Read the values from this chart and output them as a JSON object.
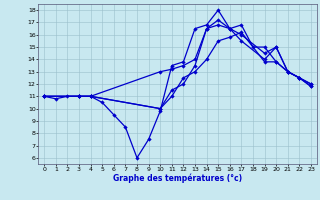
{
  "title": "Graphe des températures (°c)",
  "bg_color": "#c8e8f0",
  "line_color": "#0000cc",
  "xlim": [
    -0.5,
    23.5
  ],
  "ylim": [
    5.5,
    18.5
  ],
  "xticks": [
    0,
    1,
    2,
    3,
    4,
    5,
    6,
    7,
    8,
    9,
    10,
    11,
    12,
    13,
    14,
    15,
    16,
    17,
    18,
    19,
    20,
    21,
    22,
    23
  ],
  "yticks": [
    6,
    7,
    8,
    9,
    10,
    11,
    12,
    13,
    14,
    15,
    16,
    17,
    18
  ],
  "line1_x": [
    0,
    1,
    2,
    3,
    4,
    5,
    6,
    7,
    8,
    9,
    10,
    11,
    12,
    13,
    14,
    15,
    16,
    17,
    18,
    19,
    20,
    21,
    22,
    23
  ],
  "line1_y": [
    11,
    10.8,
    11,
    11,
    11,
    10.5,
    9.5,
    8.5,
    6.0,
    7.5,
    9.8,
    13.5,
    13.8,
    16.5,
    16.8,
    18.0,
    16.5,
    16.8,
    15.0,
    15.0,
    13.8,
    13.0,
    12.5,
    12.0
  ],
  "line2_x": [
    0,
    3,
    4,
    10,
    11,
    12,
    13,
    14,
    15,
    16,
    17,
    19,
    20,
    21,
    22,
    23
  ],
  "line2_y": [
    11,
    11,
    11,
    13,
    13.2,
    13.5,
    14.0,
    16.5,
    16.8,
    16.5,
    16.0,
    14.5,
    15.0,
    13.0,
    12.5,
    12.0
  ],
  "line3_x": [
    0,
    3,
    4,
    10,
    11,
    12,
    13,
    14,
    15,
    16,
    17,
    19,
    20,
    21,
    22,
    23
  ],
  "line3_y": [
    11,
    11,
    11,
    10.0,
    11.5,
    12.0,
    13.5,
    16.5,
    17.2,
    16.5,
    15.5,
    14.0,
    15.0,
    13.0,
    12.5,
    11.8
  ],
  "line4_x": [
    0,
    3,
    4,
    10,
    11,
    12,
    13,
    14,
    15,
    16,
    17,
    19,
    20,
    21,
    22,
    23
  ],
  "line4_y": [
    11,
    11,
    11,
    10.0,
    11.0,
    12.5,
    13.0,
    14.0,
    15.5,
    15.8,
    16.2,
    13.8,
    13.8,
    13.0,
    12.5,
    11.8
  ]
}
